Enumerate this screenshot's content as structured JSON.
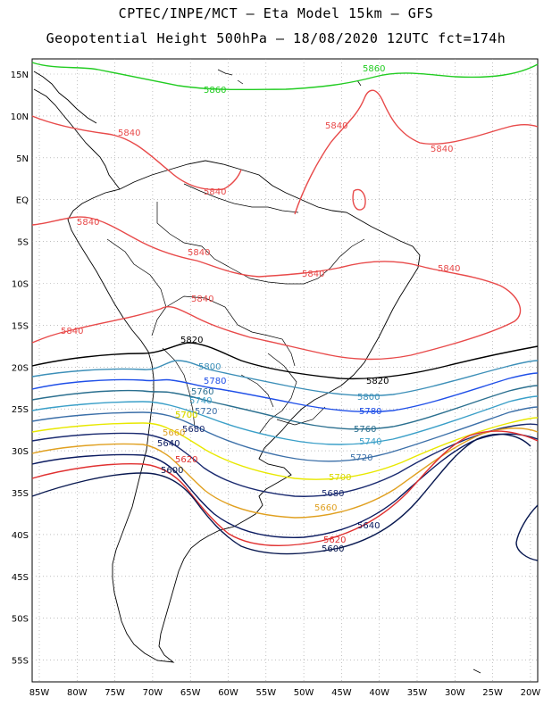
{
  "header": {
    "line1": "CPTEC/INPE/MCT –  Eta Model 15km – GFS",
    "line2": "Geopotential Height 500hPa – 18/08/2020 12UTC fct=174h"
  },
  "axes": {
    "lat_labels": [
      "15N",
      "10N",
      "5N",
      "EQ",
      "5S",
      "10S",
      "15S",
      "20S",
      "25S",
      "30S",
      "35S",
      "40S",
      "45S",
      "50S",
      "55S"
    ],
    "lon_labels": [
      "85W",
      "80W",
      "75W",
      "70W",
      "65W",
      "60W",
      "55W",
      "50W",
      "45W",
      "40W",
      "35W",
      "30W",
      "25W",
      "20W"
    ]
  },
  "contours": [
    {
      "value": "5860",
      "color": "#22cc22"
    },
    {
      "value": "5840",
      "color": "#e84a4a"
    },
    {
      "value": "5820",
      "color": "#000000"
    },
    {
      "value": "5800",
      "color": "#3c8fb8"
    },
    {
      "value": "5780",
      "color": "#1f4fe8"
    },
    {
      "value": "5760",
      "color": "#2a6f8f"
    },
    {
      "value": "5740",
      "color": "#3a9fc8"
    },
    {
      "value": "5720",
      "color": "#3b6fa8"
    },
    {
      "value": "5700",
      "color": "#e8e800"
    },
    {
      "value": "5680",
      "color": "#1a2a70"
    },
    {
      "value": "5660",
      "color": "#e0a020"
    },
    {
      "value": "5640",
      "color": "#0a1a60"
    },
    {
      "value": "5620",
      "color": "#e03030"
    },
    {
      "value": "5600",
      "color": "#081850"
    }
  ],
  "labels": {
    "l5860a": "5860",
    "l5860b": "5860",
    "l5840a": "5840",
    "l5840b": "5840",
    "l5840c": "5840",
    "l5840d": "5840",
    "l5840e": "5840",
    "l5840f": "5840",
    "l5840g": "5840",
    "l5840h": "5840",
    "l5840i": "5840",
    "l5840j": "5840",
    "l5820a": "5820",
    "l5820b": "5820",
    "l5800a": "5800",
    "l5800b": "5800",
    "l5780a": "5780",
    "l5780b": "5780",
    "l5760a": "5760",
    "l5760b": "5760",
    "l5740a": "5740",
    "l5740b": "5740",
    "l5720a": "5720",
    "l5720b": "5720",
    "l5700a": "5700",
    "l5700b": "5700",
    "l5680a": "5680",
    "l5680b": "5680",
    "l5660a": "5660",
    "l5660b": "5660",
    "l5640a": "5640",
    "l5640b": "5640",
    "l5620a": "5620",
    "l5620b": "5620",
    "l5600a": "5600",
    "l5600b": "5600"
  }
}
